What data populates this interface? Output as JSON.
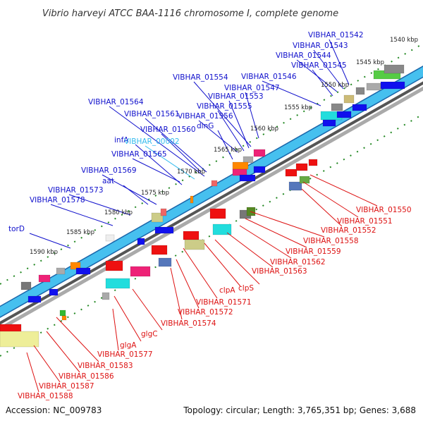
{
  "title": "Vibrio harveyi ATCC BAA-1116 chromosome I, complete genome",
  "footer": {
    "accession": "Accession: NC_009783",
    "summary": "Topology: circular; Length: 3,765,351 bp; Genes: 3,688"
  },
  "colors": {
    "forward_label": "#1010cc",
    "reverse_label": "#dd1111",
    "highlight_label": "#33bbee",
    "backbone": "#44bbee",
    "ticks": "#228822"
  },
  "kbp_ticks": [
    "1540 kbp",
    "1545 kbp",
    "1550 kbp",
    "1555 kbp",
    "1560 kbp",
    "1565 kbp",
    "1570 kbp",
    "1575 kbp",
    "1580 kbp",
    "1585 kbp",
    "1590 kbp"
  ],
  "forward_labels": [
    "VIBHAR_01542",
    "VIBHAR_01543",
    "VIBHAR_01544",
    "VIBHAR_01545",
    "VIBHAR_01546",
    "VIBHAR_01554",
    "VIBHAR_01547",
    "VIBHAR_01553",
    "VIBHAR_01564",
    "VIBHAR_01555",
    "VIBHAR_01561",
    "VIBHAR_01556",
    "dinG",
    "VIBHAR_01560",
    "infA",
    "VIBHAR_00002",
    "VIBHAR_01565",
    "VIBHAR_01569",
    "aat",
    "VIBHAR_01573",
    "VIBHAR_01578",
    "torD"
  ],
  "highlight_labels": [
    "VIBHAR_00002"
  ],
  "reverse_labels": [
    "VIBHAR_01550",
    "VIBHAR_01551",
    "VIBHAR_01552",
    "VIBHAR_01558",
    "VIBHAR_01559",
    "VIBHAR_01562",
    "VIBHAR_01563",
    "clpS",
    "clpA",
    "VIBHAR_01571",
    "VIBHAR_01572",
    "VIBHAR_01574",
    "glgC",
    "glgA",
    "VIBHAR_01577",
    "VIBHAR_01583",
    "VIBHAR_01586",
    "VIBHAR_01587",
    "VIBHAR_01588"
  ]
}
